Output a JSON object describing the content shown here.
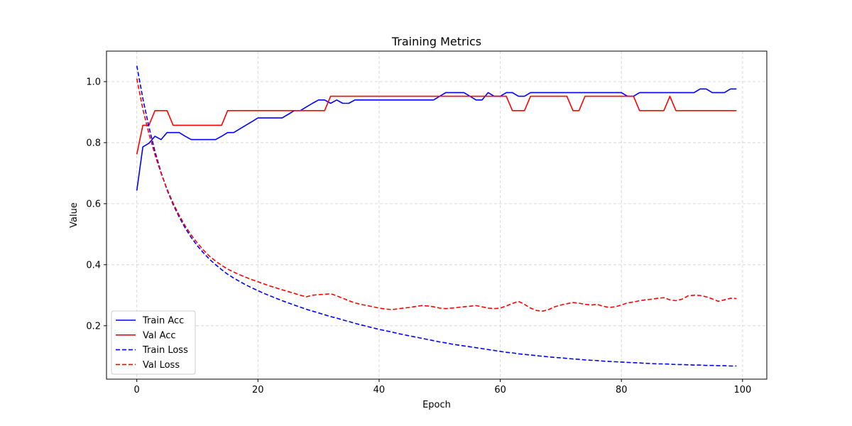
{
  "chart_data": {
    "type": "line",
    "title": "Training Metrics",
    "xlabel": "Epoch",
    "ylabel": "Value",
    "xlim": [
      -5,
      104
    ],
    "ylim": [
      0.025,
      1.1
    ],
    "xticks": [
      0,
      20,
      40,
      60,
      80,
      100
    ],
    "yticks": [
      0.2,
      0.4,
      0.6,
      0.8,
      1.0
    ],
    "xtick_labels": [
      "0",
      "20",
      "40",
      "60",
      "80",
      "100"
    ],
    "ytick_labels": [
      "0.2",
      "0.4",
      "0.6",
      "0.8",
      "1.0"
    ],
    "grid": true,
    "legend_position": "lower-left",
    "series": [
      {
        "name": "Train Acc",
        "color": "#0000ff",
        "style": "solid",
        "x": [
          0,
          1,
          2,
          3,
          4,
          5,
          6,
          7,
          8,
          9,
          10,
          11,
          12,
          13,
          14,
          15,
          16,
          17,
          18,
          19,
          20,
          21,
          22,
          23,
          24,
          25,
          26,
          27,
          28,
          29,
          30,
          31,
          32,
          33,
          34,
          35,
          36,
          37,
          38,
          39,
          40,
          41,
          42,
          43,
          44,
          45,
          46,
          47,
          48,
          49,
          50,
          51,
          52,
          53,
          54,
          55,
          56,
          57,
          58,
          59,
          60,
          61,
          62,
          63,
          64,
          65,
          66,
          67,
          68,
          69,
          70,
          71,
          72,
          73,
          74,
          75,
          76,
          77,
          78,
          79,
          80,
          81,
          82,
          83,
          84,
          85,
          86,
          87,
          88,
          89,
          90,
          91,
          92,
          93,
          94,
          95,
          96,
          97,
          98,
          99
        ],
        "y": [
          0.643,
          0.786,
          0.798,
          0.821,
          0.81,
          0.833,
          0.833,
          0.833,
          0.821,
          0.81,
          0.81,
          0.81,
          0.81,
          0.81,
          0.821,
          0.833,
          0.833,
          0.845,
          0.857,
          0.869,
          0.881,
          0.881,
          0.881,
          0.881,
          0.881,
          0.893,
          0.905,
          0.905,
          0.917,
          0.929,
          0.94,
          0.94,
          0.929,
          0.94,
          0.929,
          0.929,
          0.94,
          0.94,
          0.94,
          0.94,
          0.94,
          0.94,
          0.94,
          0.94,
          0.94,
          0.94,
          0.94,
          0.94,
          0.94,
          0.94,
          0.952,
          0.964,
          0.964,
          0.964,
          0.964,
          0.952,
          0.94,
          0.94,
          0.964,
          0.952,
          0.952,
          0.964,
          0.964,
          0.952,
          0.952,
          0.964,
          0.964,
          0.964,
          0.964,
          0.964,
          0.964,
          0.964,
          0.964,
          0.964,
          0.964,
          0.964,
          0.964,
          0.964,
          0.964,
          0.964,
          0.964,
          0.952,
          0.952,
          0.964,
          0.964,
          0.964,
          0.964,
          0.964,
          0.964,
          0.964,
          0.964,
          0.964,
          0.964,
          0.976,
          0.976,
          0.964,
          0.964,
          0.964,
          0.976,
          0.976
        ]
      },
      {
        "name": "Val Acc",
        "color": "#ff0000",
        "style": "solid",
        "x": [
          0,
          1,
          2,
          3,
          4,
          5,
          6,
          7,
          8,
          9,
          10,
          11,
          12,
          13,
          14,
          15,
          16,
          17,
          18,
          19,
          20,
          21,
          22,
          23,
          24,
          25,
          26,
          27,
          28,
          29,
          30,
          31,
          32,
          33,
          34,
          35,
          36,
          37,
          38,
          39,
          40,
          41,
          42,
          43,
          44,
          45,
          46,
          47,
          48,
          49,
          50,
          51,
          52,
          53,
          54,
          55,
          56,
          57,
          58,
          59,
          60,
          61,
          62,
          63,
          64,
          65,
          66,
          67,
          68,
          69,
          70,
          71,
          72,
          73,
          74,
          75,
          76,
          77,
          78,
          79,
          80,
          81,
          82,
          83,
          84,
          85,
          86,
          87,
          88,
          89,
          90,
          91,
          92,
          93,
          94,
          95,
          96,
          97,
          98,
          99
        ],
        "y": [
          0.762,
          0.857,
          0.857,
          0.905,
          0.905,
          0.905,
          0.857,
          0.857,
          0.857,
          0.857,
          0.857,
          0.857,
          0.857,
          0.857,
          0.857,
          0.905,
          0.905,
          0.905,
          0.905,
          0.905,
          0.905,
          0.905,
          0.905,
          0.905,
          0.905,
          0.905,
          0.905,
          0.905,
          0.905,
          0.905,
          0.905,
          0.905,
          0.952,
          0.952,
          0.952,
          0.952,
          0.952,
          0.952,
          0.952,
          0.952,
          0.952,
          0.952,
          0.952,
          0.952,
          0.952,
          0.952,
          0.952,
          0.952,
          0.952,
          0.952,
          0.952,
          0.952,
          0.952,
          0.952,
          0.952,
          0.952,
          0.952,
          0.952,
          0.952,
          0.952,
          0.952,
          0.952,
          0.905,
          0.905,
          0.905,
          0.952,
          0.952,
          0.952,
          0.952,
          0.952,
          0.952,
          0.952,
          0.905,
          0.905,
          0.952,
          0.952,
          0.952,
          0.952,
          0.952,
          0.952,
          0.952,
          0.952,
          0.952,
          0.905,
          0.905,
          0.905,
          0.905,
          0.905,
          0.952,
          0.905,
          0.905,
          0.905,
          0.905,
          0.905,
          0.905,
          0.905,
          0.905,
          0.905,
          0.905,
          0.905
        ]
      },
      {
        "name": "Train Loss",
        "color": "#0000ff",
        "style": "dashed",
        "x": [
          0,
          1,
          2,
          3,
          4,
          5,
          6,
          7,
          8,
          9,
          10,
          11,
          12,
          13,
          14,
          15,
          16,
          17,
          18,
          19,
          20,
          21,
          22,
          23,
          24,
          25,
          26,
          27,
          28,
          29,
          30,
          31,
          32,
          33,
          34,
          35,
          36,
          37,
          38,
          39,
          40,
          41,
          42,
          43,
          44,
          45,
          46,
          47,
          48,
          49,
          50,
          51,
          52,
          53,
          54,
          55,
          56,
          57,
          58,
          59,
          60,
          61,
          62,
          63,
          64,
          65,
          66,
          67,
          68,
          69,
          70,
          71,
          72,
          73,
          74,
          75,
          76,
          77,
          78,
          79,
          80,
          81,
          82,
          83,
          84,
          85,
          86,
          87,
          88,
          89,
          90,
          91,
          92,
          93,
          94,
          95,
          96,
          97,
          98,
          99
        ],
        "y": [
          1.052,
          0.945,
          0.852,
          0.771,
          0.703,
          0.645,
          0.597,
          0.556,
          0.52,
          0.489,
          0.462,
          0.439,
          0.418,
          0.4,
          0.384,
          0.369,
          0.356,
          0.345,
          0.334,
          0.324,
          0.315,
          0.306,
          0.298,
          0.29,
          0.282,
          0.275,
          0.268,
          0.261,
          0.254,
          0.248,
          0.242,
          0.236,
          0.23,
          0.225,
          0.219,
          0.214,
          0.208,
          0.203,
          0.198,
          0.193,
          0.188,
          0.184,
          0.18,
          0.175,
          0.171,
          0.167,
          0.163,
          0.159,
          0.155,
          0.151,
          0.147,
          0.144,
          0.14,
          0.137,
          0.134,
          0.131,
          0.128,
          0.125,
          0.122,
          0.119,
          0.116,
          0.113,
          0.111,
          0.108,
          0.106,
          0.104,
          0.102,
          0.1,
          0.098,
          0.096,
          0.095,
          0.093,
          0.091,
          0.09,
          0.088,
          0.087,
          0.086,
          0.084,
          0.083,
          0.082,
          0.081,
          0.08,
          0.079,
          0.078,
          0.077,
          0.076,
          0.075,
          0.075,
          0.074,
          0.073,
          0.073,
          0.072,
          0.071,
          0.071,
          0.07,
          0.07,
          0.069,
          0.069,
          0.068,
          0.068
        ]
      },
      {
        "name": "Val Loss",
        "color": "#ff0000",
        "style": "dashed",
        "x": [
          0,
          1,
          2,
          3,
          4,
          5,
          6,
          7,
          8,
          9,
          10,
          11,
          12,
          13,
          14,
          15,
          16,
          17,
          18,
          19,
          20,
          21,
          22,
          23,
          24,
          25,
          26,
          27,
          28,
          29,
          30,
          31,
          32,
          33,
          34,
          35,
          36,
          37,
          38,
          39,
          40,
          41,
          42,
          43,
          44,
          45,
          46,
          47,
          48,
          49,
          50,
          51,
          52,
          53,
          54,
          55,
          56,
          57,
          58,
          59,
          60,
          61,
          62,
          63,
          64,
          65,
          66,
          67,
          68,
          69,
          70,
          71,
          72,
          73,
          74,
          75,
          76,
          77,
          78,
          79,
          80,
          81,
          82,
          83,
          84,
          85,
          86,
          87,
          88,
          89,
          90,
          91,
          92,
          93,
          94,
          95,
          96,
          97,
          98,
          99
        ],
        "y": [
          1.01,
          0.91,
          0.83,
          0.76,
          0.7,
          0.648,
          0.602,
          0.562,
          0.527,
          0.497,
          0.471,
          0.448,
          0.428,
          0.412,
          0.398,
          0.386,
          0.376,
          0.367,
          0.359,
          0.351,
          0.344,
          0.337,
          0.33,
          0.324,
          0.318,
          0.312,
          0.306,
          0.3,
          0.295,
          0.3,
          0.302,
          0.303,
          0.305,
          0.298,
          0.29,
          0.282,
          0.275,
          0.27,
          0.266,
          0.262,
          0.258,
          0.255,
          0.253,
          0.255,
          0.258,
          0.26,
          0.263,
          0.266,
          0.265,
          0.262,
          0.258,
          0.256,
          0.258,
          0.26,
          0.262,
          0.264,
          0.266,
          0.262,
          0.258,
          0.256,
          0.258,
          0.265,
          0.273,
          0.28,
          0.27,
          0.258,
          0.25,
          0.248,
          0.253,
          0.262,
          0.268,
          0.272,
          0.276,
          0.274,
          0.27,
          0.268,
          0.27,
          0.264,
          0.26,
          0.262,
          0.268,
          0.275,
          0.278,
          0.282,
          0.285,
          0.287,
          0.29,
          0.292,
          0.285,
          0.282,
          0.287,
          0.298,
          0.3,
          0.299,
          0.295,
          0.288,
          0.28,
          0.285,
          0.29,
          0.289
        ]
      }
    ]
  }
}
